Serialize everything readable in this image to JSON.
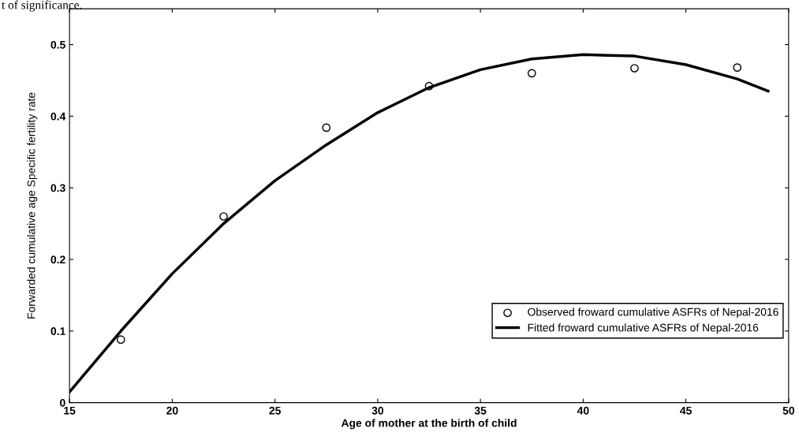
{
  "chart_data": {
    "type": "scatter",
    "xlabel": "Age of mother at the birth of child",
    "ylabel": "Forwarded cumulative age Specific fertility rate",
    "annotations": [
      "t of significance."
    ],
    "series": [
      {
        "name": "Observed froward cumulative ASFRs of Nepal-2016",
        "marker": "circle",
        "color": "#000000",
        "x": [
          17.5,
          22.5,
          27.5,
          32.5,
          37.5,
          42.5,
          47.5
        ],
        "values": [
          0.088,
          0.26,
          0.384,
          0.442,
          0.46,
          0.467,
          0.468
        ]
      },
      {
        "name": "Fitted froward cumulative ASFRs of Nepal-2016",
        "type": "line",
        "color": "#000000",
        "line_style": "solid",
        "x": [
          15,
          17.5,
          20,
          22.5,
          25,
          27.5,
          30,
          32.5,
          35,
          37.5,
          40,
          42.5,
          45,
          47.5,
          49
        ],
        "values": [
          0.015,
          0.1,
          0.18,
          0.25,
          0.31,
          0.36,
          0.405,
          0.44,
          0.465,
          0.48,
          0.486,
          0.484,
          0.472,
          0.452,
          0.435
        ]
      }
    ],
    "xlim": [
      15,
      50
    ],
    "xticks": [
      15,
      20,
      25,
      30,
      35,
      40,
      45,
      50
    ],
    "ylim": [
      0,
      0.55
    ],
    "yticks": [
      0,
      0.1,
      0.2,
      0.3,
      0.4,
      0.5
    ],
    "grid": false,
    "legend": "lower right"
  }
}
